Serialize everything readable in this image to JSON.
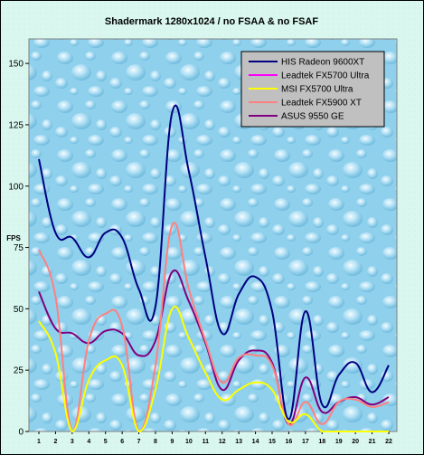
{
  "chart_data": {
    "type": "line",
    "title": "Shadermark 1280x1024 / no FSAA & no FSAF",
    "xlabel": "",
    "ylabel": "FPS",
    "x": [
      1,
      2,
      3,
      4,
      5,
      6,
      7,
      8,
      9,
      10,
      11,
      12,
      13,
      14,
      15,
      16,
      17,
      18,
      19,
      20,
      21,
      22
    ],
    "ylim": [
      0,
      160
    ],
    "yticks": [
      0,
      25,
      50,
      75,
      100,
      125,
      150
    ],
    "legend_position": "top-right",
    "background": "water-droplet texture",
    "series": [
      {
        "name": "HIS Radeon 9600XT",
        "color": "#000080",
        "values": [
          111,
          81,
          79,
          71,
          81,
          79,
          58,
          51,
          130,
          106,
          71,
          40,
          56,
          63,
          49,
          5,
          49,
          11,
          23,
          28,
          16,
          27
        ]
      },
      {
        "name": "Leadtek FX5700 Ultra",
        "color": "#ff00ff",
        "values": [
          null,
          null,
          null,
          null,
          null,
          null,
          null,
          null,
          null,
          null,
          null,
          null,
          null,
          null,
          null,
          null,
          null,
          null,
          null,
          null,
          null,
          null
        ]
      },
      {
        "name": "MSI FX5700 Ultra",
        "color": "#ffff00",
        "values": [
          45,
          32,
          0,
          21,
          29,
          27,
          0,
          17,
          50,
          38,
          24,
          13,
          17,
          20,
          17,
          4,
          7,
          0,
          0,
          0,
          0,
          0
        ]
      },
      {
        "name": "Leadtek FX5900 XT",
        "color": "#ff8080",
        "values": [
          74,
          55,
          0,
          37,
          48,
          43,
          0,
          27,
          84,
          58,
          37,
          20,
          30,
          31,
          27,
          3,
          12,
          3,
          12,
          13,
          10,
          12
        ]
      },
      {
        "name": "ASUS 9550 GE",
        "color": "#800080",
        "values": [
          57,
          42,
          40,
          36,
          41,
          40,
          31,
          37,
          65,
          53,
          36,
          17,
          29,
          33,
          28,
          3,
          22,
          8,
          12,
          14,
          11,
          14
        ]
      }
    ]
  }
}
